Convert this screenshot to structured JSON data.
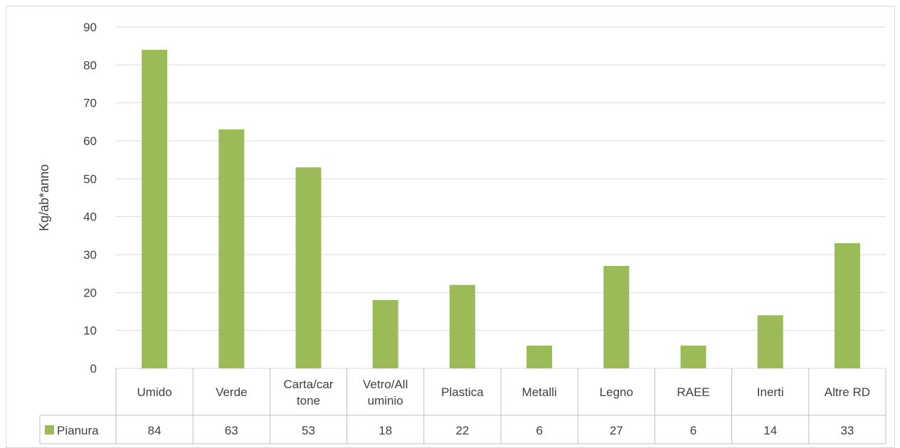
{
  "chart_data": {
    "type": "bar",
    "categories": [
      "Umido",
      "Verde",
      "Carta/cartone",
      "Vetro/Alluminio",
      "Plastica",
      "Metalli",
      "Legno",
      "RAEE",
      "Inerti",
      "Altre RD"
    ],
    "category_display": [
      [
        "Umido"
      ],
      [
        "Verde"
      ],
      [
        "Carta/car",
        "tone"
      ],
      [
        "Vetro/All",
        "uminio"
      ],
      [
        "Plastica"
      ],
      [
        "Metalli"
      ],
      [
        "Legno"
      ],
      [
        "RAEE"
      ],
      [
        "Inerti"
      ],
      [
        "Altre RD"
      ]
    ],
    "series": [
      {
        "name": "Pianura",
        "values": [
          84,
          63,
          53,
          18,
          22,
          6,
          27,
          6,
          14,
          33
        ],
        "color": "#9bbb59"
      }
    ],
    "ylabel": "Kg/ab*anno",
    "ylim": [
      0,
      90
    ],
    "yticks": [
      0,
      10,
      20,
      30,
      40,
      50,
      60,
      70,
      80,
      90
    ],
    "grid": true,
    "data_table": true,
    "legend_placement": "data-table-row"
  }
}
